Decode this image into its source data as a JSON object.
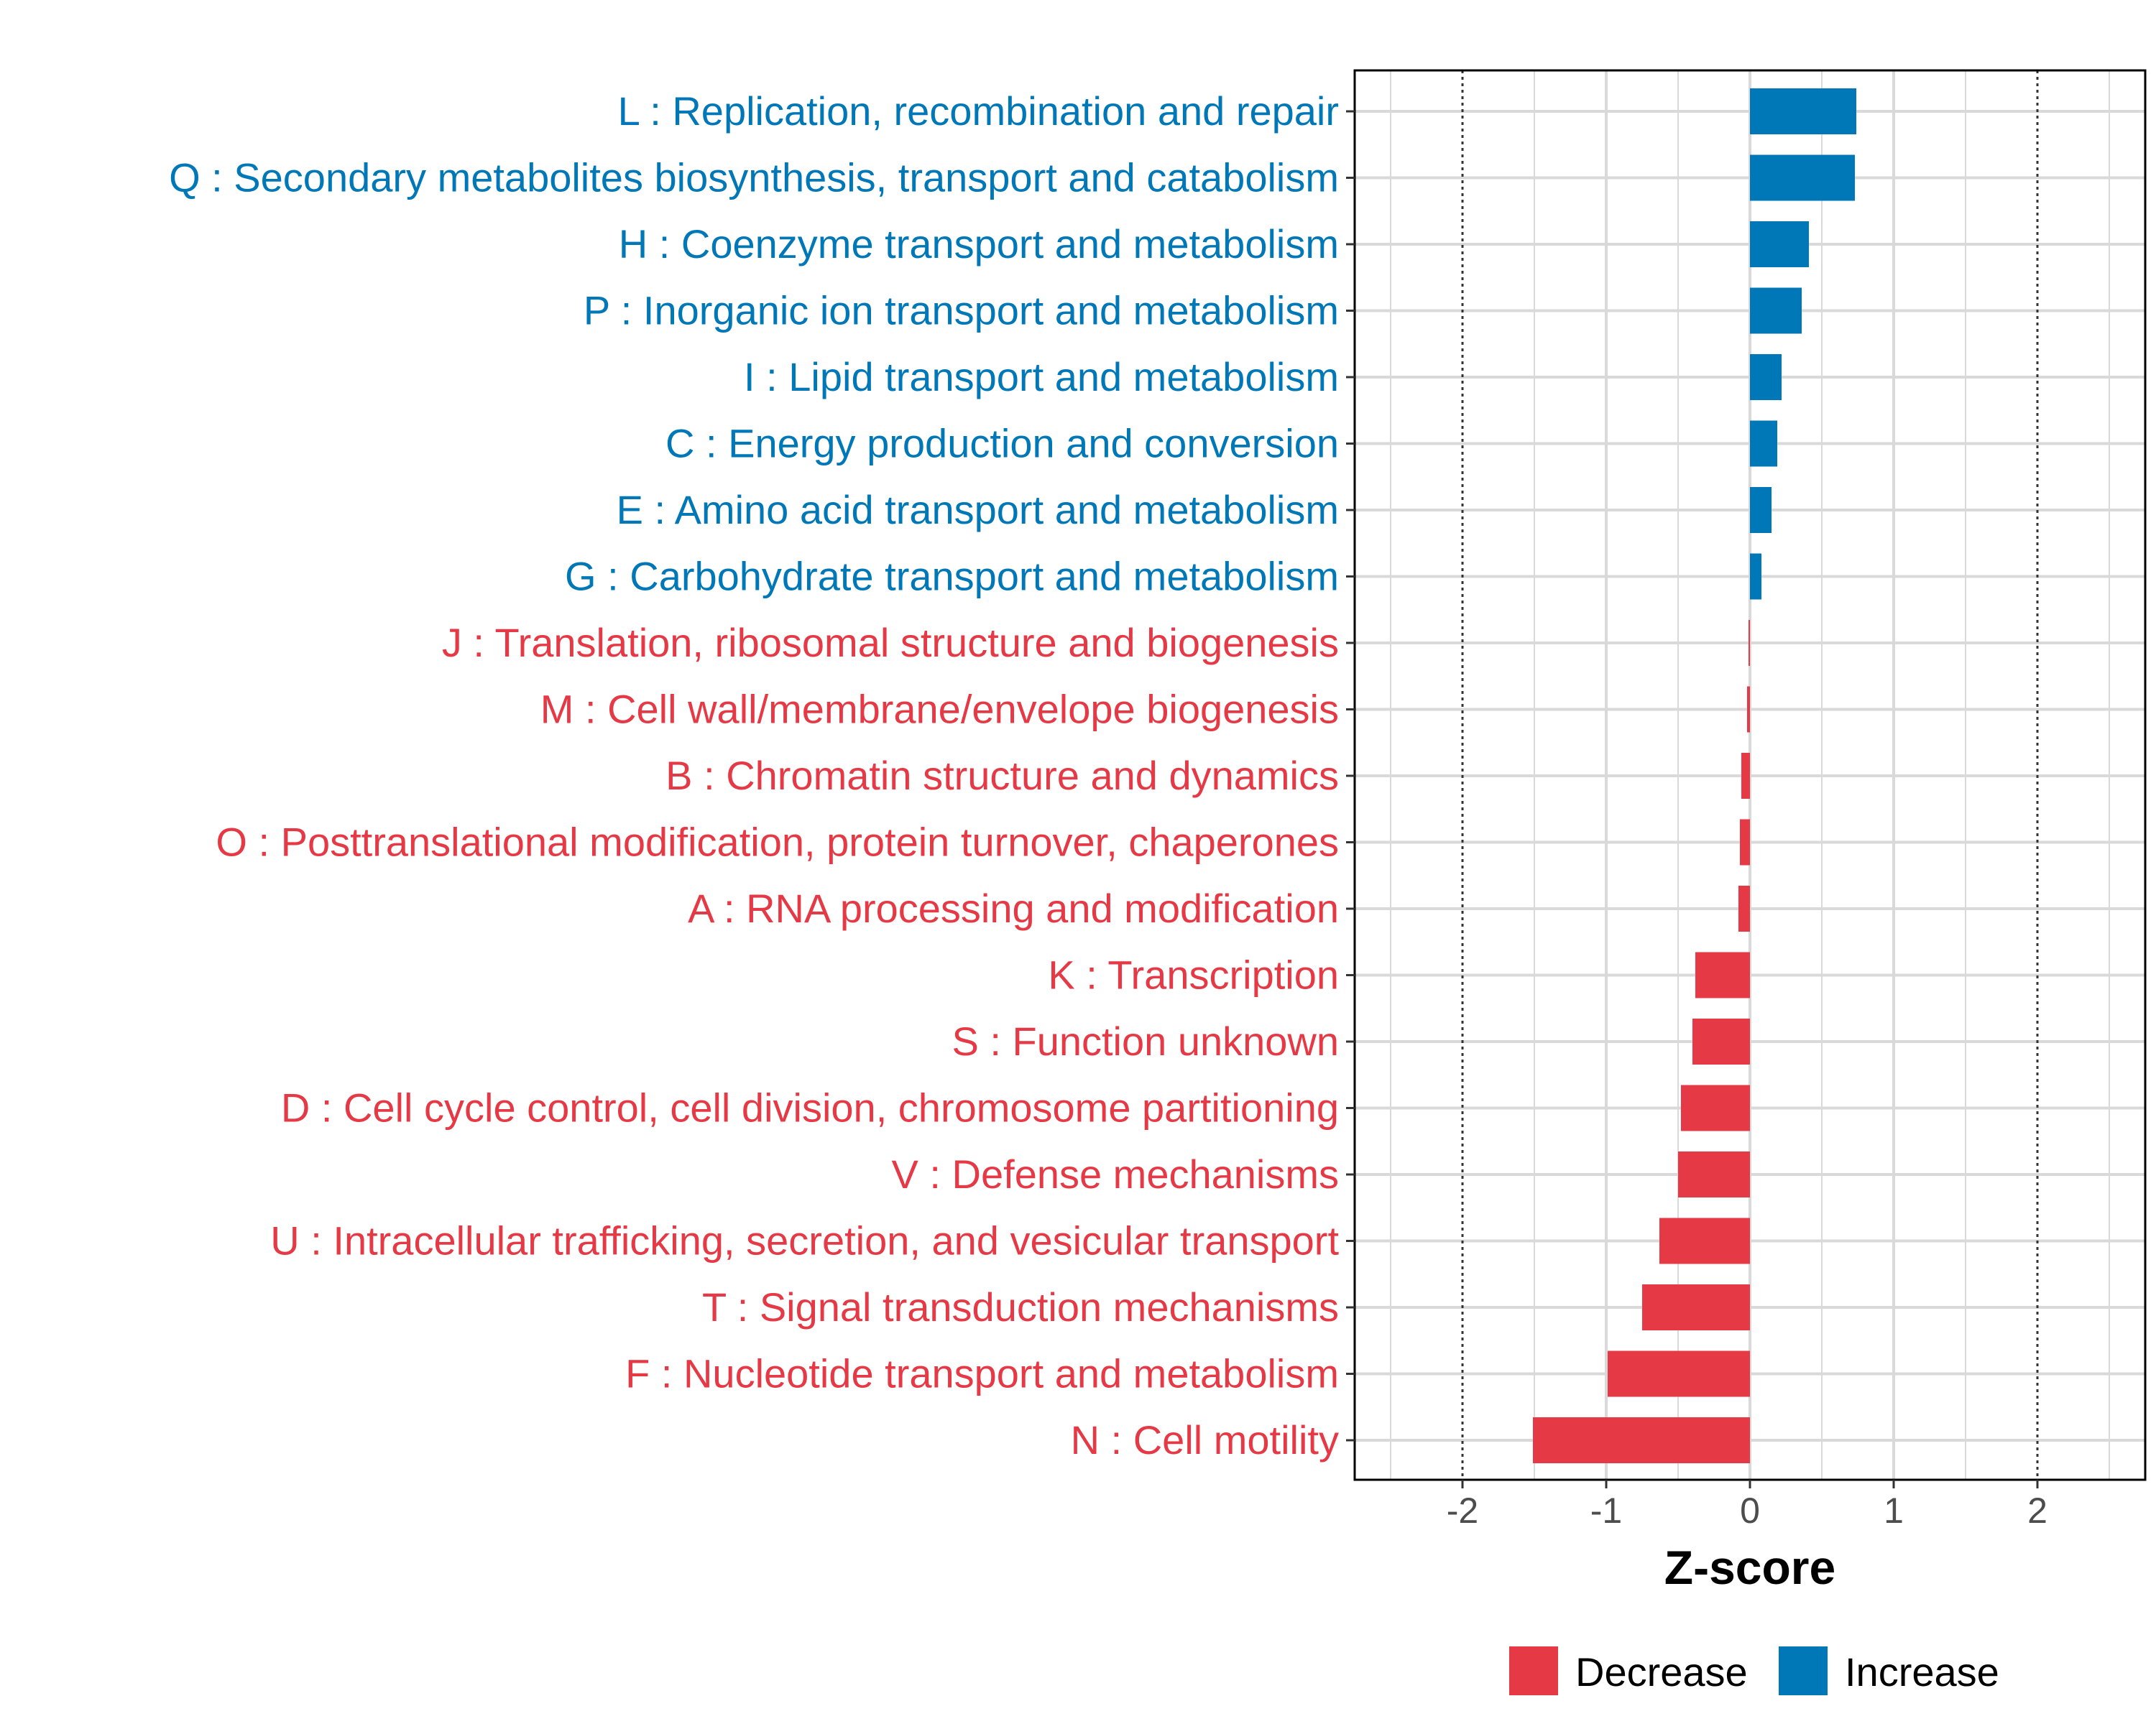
{
  "chart_data": {
    "type": "bar",
    "orientation": "horizontal",
    "title": "",
    "xlabel": "Z-score",
    "ylabel": "",
    "xlim": [
      -2.75,
      2.75
    ],
    "xticks": [
      -2,
      -1,
      0,
      1,
      2
    ],
    "xtick_labels": [
      "-2",
      "-1",
      "0",
      "1",
      "2"
    ],
    "reference_lines": [
      -2,
      2
    ],
    "grid": true,
    "categories": [
      "L : Replication, recombination and repair",
      "Q : Secondary metabolites biosynthesis, transport and catabolism",
      "H : Coenzyme transport and metabolism",
      "P : Inorganic ion transport and metabolism",
      "I : Lipid transport and metabolism",
      "C : Energy production and conversion",
      "E : Amino acid transport and metabolism",
      "G : Carbohydrate transport and metabolism",
      "J : Translation, ribosomal structure and biogenesis",
      "M : Cell wall/membrane/envelope biogenesis",
      "B : Chromatin structure and dynamics",
      "O : Posttranslational modification, protein turnover, chaperones",
      "A : RNA processing and modification",
      "K : Transcription",
      "S : Function unknown",
      "D : Cell cycle control, cell division, chromosome partitioning",
      "V : Defense mechanisms",
      "U : Intracellular trafficking, secretion, and vesicular transport",
      "T : Signal transduction mechanisms",
      "F : Nucleotide transport and metabolism",
      "N : Cell motility"
    ],
    "values": [
      0.74,
      0.73,
      0.41,
      0.36,
      0.22,
      0.19,
      0.15,
      0.08,
      -0.01,
      -0.02,
      -0.06,
      -0.07,
      -0.08,
      -0.38,
      -0.4,
      -0.48,
      -0.5,
      -0.63,
      -0.75,
      -0.99,
      -1.51
    ],
    "groups": [
      "Increase",
      "Increase",
      "Increase",
      "Increase",
      "Increase",
      "Increase",
      "Increase",
      "Increase",
      "Decrease",
      "Decrease",
      "Decrease",
      "Decrease",
      "Decrease",
      "Decrease",
      "Decrease",
      "Decrease",
      "Decrease",
      "Decrease",
      "Decrease",
      "Decrease",
      "Decrease"
    ],
    "legend": {
      "position": "bottom",
      "entries": [
        {
          "label": "Decrease",
          "color": "#e63946"
        },
        {
          "label": "Increase",
          "color": "#0077b6"
        }
      ]
    },
    "colors": {
      "Decrease": "#e63946",
      "Increase": "#0077b6"
    }
  }
}
